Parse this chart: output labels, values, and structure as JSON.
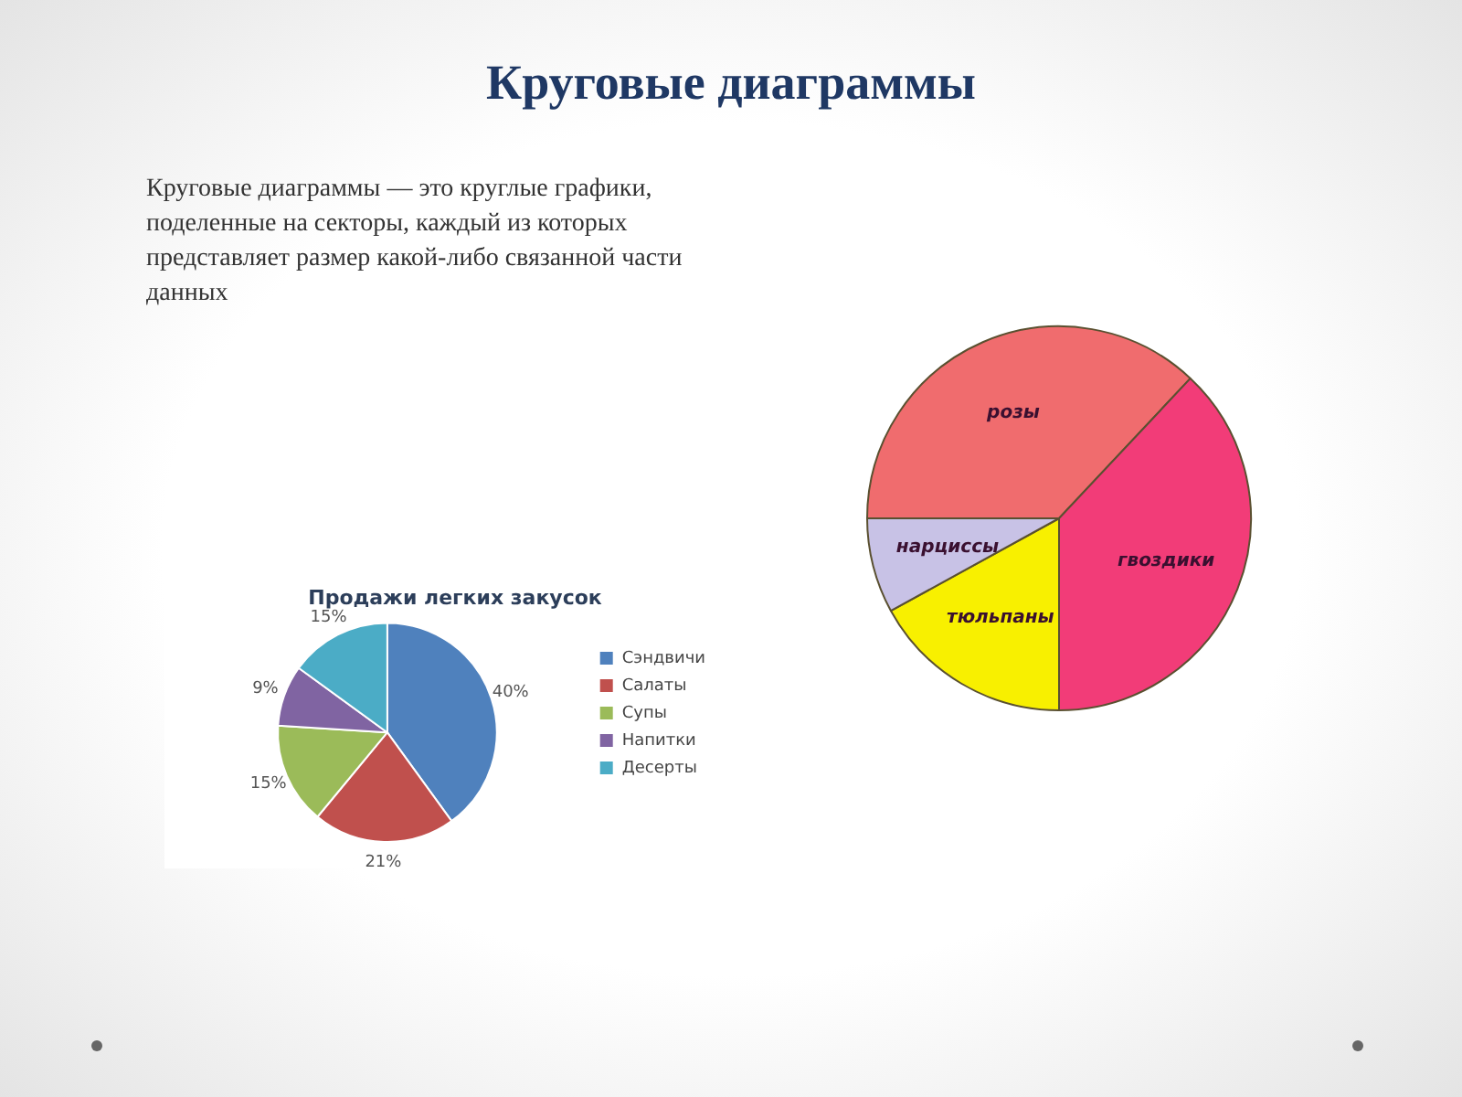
{
  "chart_data": [
    {
      "type": "other",
      "title": "Круговые диаграммы",
      "annotations": [
        "Круговые диаграммы — это круглые графики, поделенные на секторы, каждый из которых представляет размер какой-либо связанной части данных"
      ]
    },
    {
      "type": "pie",
      "title": "Продажи легких закусок",
      "categories": [
        "Сэндвичи",
        "Салаты",
        "Супы",
        "Напитки",
        "Десерты"
      ],
      "values": [
        40,
        21,
        15,
        9,
        15
      ],
      "value_labels": [
        "40%",
        "21%",
        "15%",
        "9%",
        "15%"
      ],
      "colors": [
        "#4f81bd",
        "#c0504d",
        "#9bbb59",
        "#8064a2",
        "#4bacc6"
      ],
      "legend": "right"
    },
    {
      "type": "pie",
      "categories": [
        "розы",
        "гвоздики",
        "тюльпаны",
        "нарциссы"
      ],
      "values": [
        37,
        38,
        17,
        8
      ],
      "colors": [
        "#f06c6e",
        "#f23c78",
        "#f8f000",
        "#c8c2e6"
      ]
    }
  ]
}
